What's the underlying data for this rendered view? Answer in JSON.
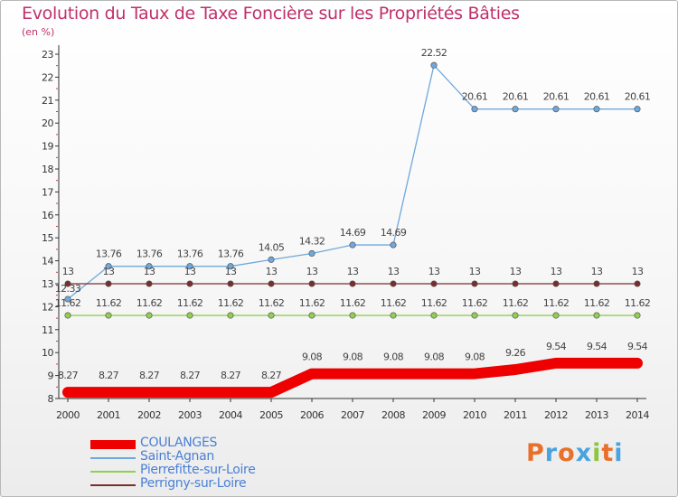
{
  "title": "Evolution du Taux de Taxe Foncière sur les Propriétés Bâties",
  "subtitle": "(en %)",
  "brand": {
    "text": "Proxiti",
    "colors": [
      "#e8702a",
      "#4aa3df",
      "#e8702a",
      "#4aa3df",
      "#8dc63f",
      "#e8702a",
      "#4aa3df"
    ]
  },
  "chart_data": {
    "type": "line",
    "title": "Evolution du Taux de Taxe Foncière sur les Propriétés Bâties",
    "ylabel": "(en %)",
    "ylim": [
      8,
      23
    ],
    "yticks": [
      8,
      9,
      10,
      11,
      12,
      13,
      14,
      15,
      16,
      17,
      18,
      19,
      20,
      21,
      22,
      23
    ],
    "x": [
      2000,
      2001,
      2002,
      2003,
      2004,
      2005,
      2006,
      2007,
      2008,
      2009,
      2010,
      2011,
      2012,
      2013,
      2014
    ],
    "legend_position": "bottom-left",
    "series": [
      {
        "name": "COULANGES",
        "color": "#ee0000",
        "bold": true,
        "values": [
          8.27,
          8.27,
          8.27,
          8.27,
          8.27,
          8.27,
          9.08,
          9.08,
          9.08,
          9.08,
          9.08,
          9.26,
          9.54,
          9.54,
          9.54
        ],
        "labels": [
          "8.27",
          "8.27",
          "8.27",
          "8.27",
          "8.27",
          "8.27",
          "9.08",
          "9.08",
          "9.08",
          "9.08",
          "9.08",
          "9.26",
          "9.54",
          "9.54",
          "9.54"
        ]
      },
      {
        "name": "Saint-Agnan",
        "color": "#6fa8dc",
        "bold": false,
        "values": [
          12.33,
          13.76,
          13.76,
          13.76,
          13.76,
          14.05,
          14.32,
          14.69,
          14.69,
          22.52,
          20.61,
          20.61,
          20.61,
          20.61,
          20.61
        ],
        "labels": [
          "12.33",
          "13.76",
          "13.76",
          "13.76",
          "13.76",
          "14.05",
          "14.32",
          "14.69",
          "14.69",
          "22.52",
          "20.61",
          "20.61",
          "20.61",
          "20.61",
          "20.61"
        ]
      },
      {
        "name": "Pierrefitte-sur-Loire",
        "color": "#8fd14f",
        "bold": false,
        "values": [
          11.62,
          11.62,
          11.62,
          11.62,
          11.62,
          11.62,
          11.62,
          11.62,
          11.62,
          11.62,
          11.62,
          11.62,
          11.62,
          11.62,
          11.62
        ],
        "labels": [
          "11.62",
          "11.62",
          "11.62",
          "11.62",
          "11.62",
          "11.62",
          "11.62",
          "11.62",
          "11.62",
          "11.62",
          "11.62",
          "11.62",
          "11.62",
          "11.62",
          "11.62"
        ]
      },
      {
        "name": "Perrigny-sur-Loire",
        "color": "#7b2d2d",
        "bold": false,
        "values": [
          13,
          13,
          13,
          13,
          13,
          13,
          13,
          13,
          13,
          13,
          13,
          13,
          13,
          13,
          13
        ],
        "labels": [
          "13",
          "13",
          "13",
          "13",
          "13",
          "13",
          "13",
          "13",
          "13",
          "13",
          "13",
          "13",
          "13",
          "13",
          "13"
        ]
      }
    ]
  }
}
